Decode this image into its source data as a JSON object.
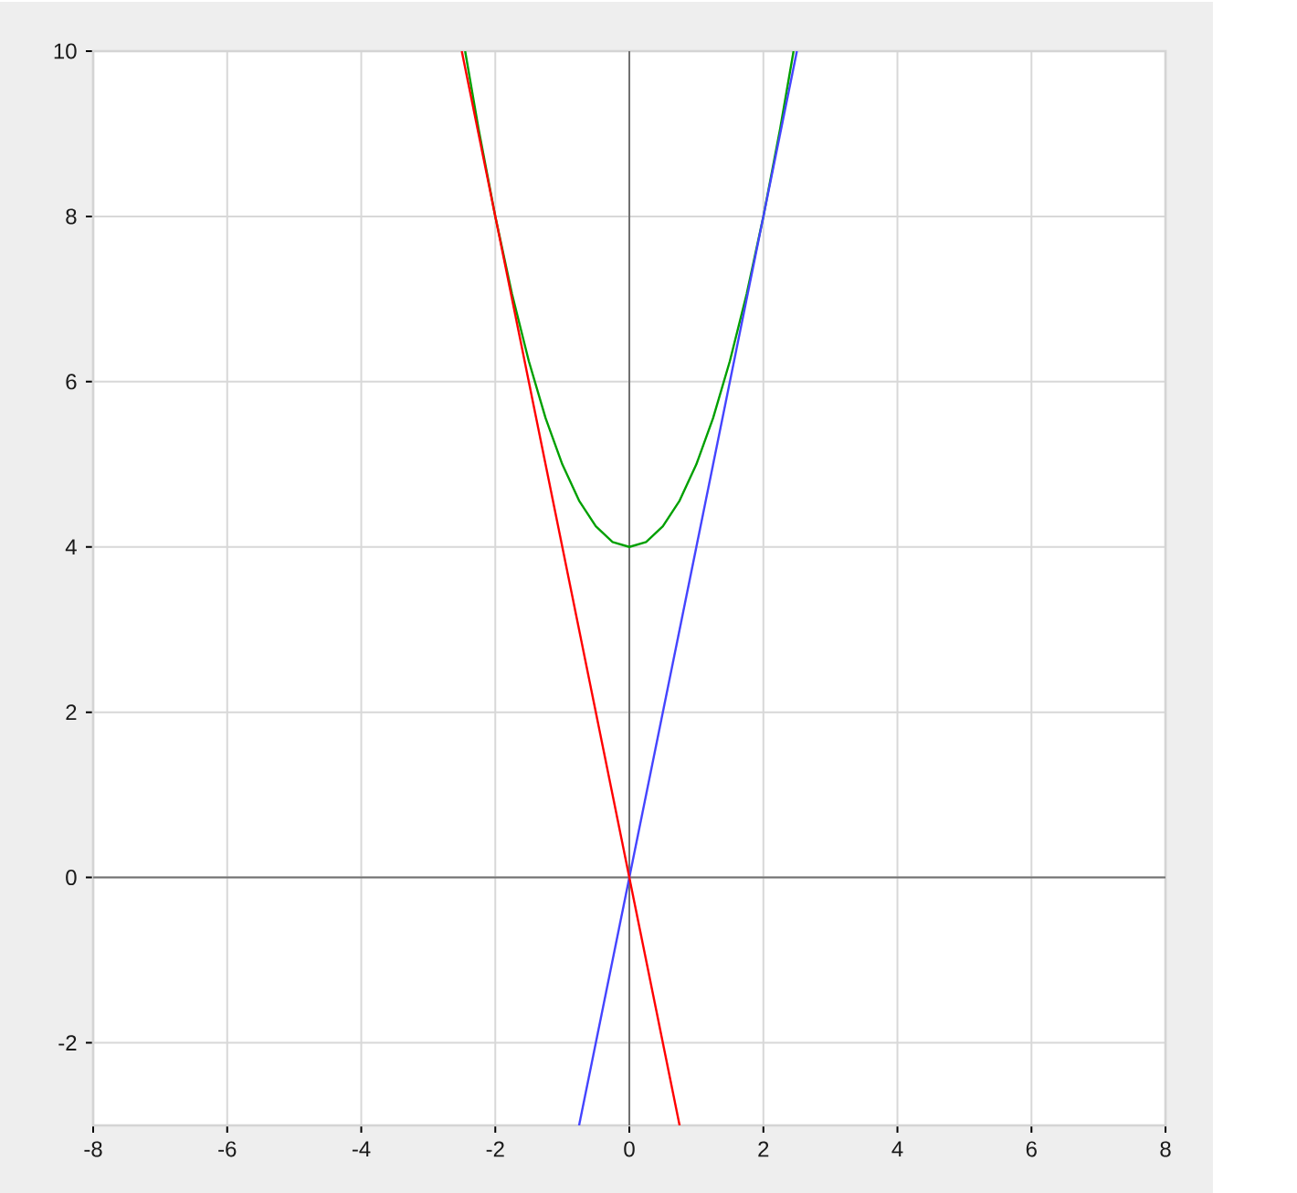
{
  "chart_data": {
    "type": "line",
    "series": [
      {
        "color": "#00a000",
        "x": [
          -2.45,
          -2.25,
          -2,
          -1.75,
          -1.5,
          -1.25,
          -1,
          -0.75,
          -0.5,
          -0.25,
          0,
          0.25,
          0.5,
          0.75,
          1,
          1.25,
          1.5,
          1.75,
          2,
          2.25,
          2.45
        ],
        "values": [
          10.0,
          9.06,
          8,
          7.06,
          6.25,
          5.56,
          5,
          4.56,
          4.25,
          4.06,
          4,
          4.06,
          4.25,
          4.56,
          5,
          5.56,
          6.25,
          7.06,
          8,
          9.06,
          10.0
        ]
      },
      {
        "color": "#4444ff",
        "x": [
          -0.75,
          2.5
        ],
        "values": [
          -3,
          10
        ]
      },
      {
        "color": "#ff0000",
        "x": [
          -2.5,
          0.75
        ],
        "values": [
          10,
          -3
        ]
      }
    ],
    "xlim": [
      -8,
      8
    ],
    "ylim": [
      -3,
      10
    ],
    "xticks": [
      -8,
      -6,
      -4,
      -2,
      0,
      2,
      4,
      6,
      8
    ],
    "yticks": [
      -2,
      0,
      2,
      4,
      6,
      8,
      10
    ],
    "grid": true,
    "marker": "none",
    "line_style": "solid"
  }
}
